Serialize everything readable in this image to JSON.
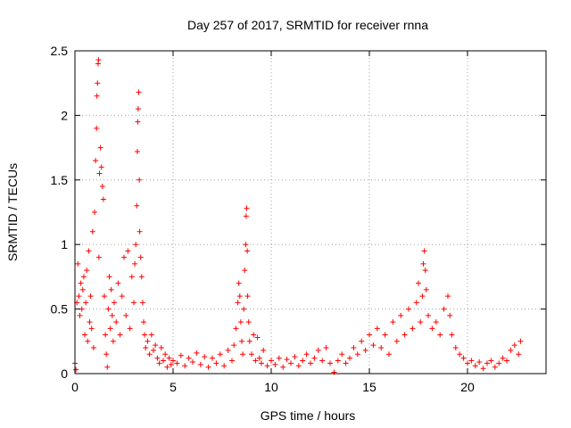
{
  "chart_data": {
    "type": "scatter",
    "title": "Day 257 of 2017, SRMTID for receiver rnna",
    "xlabel": "GPS time / hours",
    "ylabel": "SRMTID / TECUs",
    "xlim": [
      0,
      24
    ],
    "ylim": [
      0,
      2.5
    ],
    "xticks": [
      0,
      5,
      10,
      15,
      20
    ],
    "yticks": [
      0,
      0.5,
      1,
      1.5,
      2,
      2.5
    ],
    "ytick_labels": [
      "0",
      "0.5",
      "1",
      "1.5",
      "2",
      "2.5"
    ],
    "grid": true,
    "marker": "+",
    "color": "#ff0000",
    "series": [
      {
        "name": "SRMTID",
        "points": [
          [
            0.0,
            0.08
          ],
          [
            0.05,
            0.03
          ],
          [
            0.1,
            0.55
          ],
          [
            0.15,
            0.85
          ],
          [
            0.2,
            0.6
          ],
          [
            0.25,
            0.45
          ],
          [
            0.3,
            0.7
          ],
          [
            0.35,
            0.5
          ],
          [
            0.4,
            0.65
          ],
          [
            0.45,
            0.75
          ],
          [
            0.5,
            0.3
          ],
          [
            0.55,
            0.55
          ],
          [
            0.6,
            0.8
          ],
          [
            0.65,
            0.25
          ],
          [
            0.7,
            0.95
          ],
          [
            0.75,
            0.4
          ],
          [
            0.8,
            0.6
          ],
          [
            0.85,
            0.35
          ],
          [
            0.9,
            1.1
          ],
          [
            0.95,
            0.2
          ],
          [
            1.0,
            1.25
          ],
          [
            1.05,
            1.65
          ],
          [
            1.1,
            1.9
          ],
          [
            1.12,
            2.15
          ],
          [
            1.15,
            2.25
          ],
          [
            1.18,
            2.4
          ],
          [
            1.2,
            2.43
          ],
          [
            1.22,
            0.9
          ],
          [
            1.25,
            1.55
          ],
          [
            1.3,
            1.75
          ],
          [
            1.35,
            1.6
          ],
          [
            1.4,
            1.45
          ],
          [
            1.45,
            1.35
          ],
          [
            1.5,
            0.6
          ],
          [
            1.55,
            0.3
          ],
          [
            1.6,
            0.15
          ],
          [
            1.65,
            0.05
          ],
          [
            1.7,
            0.5
          ],
          [
            1.75,
            0.75
          ],
          [
            1.8,
            0.35
          ],
          [
            1.85,
            0.65
          ],
          [
            1.9,
            0.45
          ],
          [
            1.95,
            0.25
          ],
          [
            2.0,
            0.55
          ],
          [
            2.1,
            0.4
          ],
          [
            2.2,
            0.7
          ],
          [
            2.3,
            0.3
          ],
          [
            2.4,
            0.6
          ],
          [
            2.5,
            0.9
          ],
          [
            2.6,
            0.45
          ],
          [
            2.7,
            0.95
          ],
          [
            2.8,
            0.35
          ],
          [
            2.9,
            0.75
          ],
          [
            3.0,
            0.55
          ],
          [
            3.05,
            0.85
          ],
          [
            3.1,
            1.0
          ],
          [
            3.15,
            1.3
          ],
          [
            3.18,
            1.72
          ],
          [
            3.2,
            1.95
          ],
          [
            3.22,
            2.05
          ],
          [
            3.25,
            2.18
          ],
          [
            3.28,
            1.5
          ],
          [
            3.3,
            1.1
          ],
          [
            3.35,
            0.9
          ],
          [
            3.4,
            0.75
          ],
          [
            3.45,
            0.55
          ],
          [
            3.5,
            0.4
          ],
          [
            3.55,
            0.3
          ],
          [
            3.6,
            0.2
          ],
          [
            3.7,
            0.25
          ],
          [
            3.8,
            0.15
          ],
          [
            3.9,
            0.3
          ],
          [
            4.0,
            0.18
          ],
          [
            4.1,
            0.22
          ],
          [
            4.2,
            0.12
          ],
          [
            4.3,
            0.08
          ],
          [
            4.4,
            0.2
          ],
          [
            4.5,
            0.1
          ],
          [
            4.6,
            0.15
          ],
          [
            4.7,
            0.05
          ],
          [
            4.8,
            0.12
          ],
          [
            4.9,
            0.07
          ],
          [
            5.0,
            0.1
          ],
          [
            5.2,
            0.08
          ],
          [
            5.4,
            0.14
          ],
          [
            5.6,
            0.06
          ],
          [
            5.8,
            0.12
          ],
          [
            6.0,
            0.09
          ],
          [
            6.2,
            0.16
          ],
          [
            6.4,
            0.07
          ],
          [
            6.6,
            0.13
          ],
          [
            6.8,
            0.05
          ],
          [
            7.0,
            0.12
          ],
          [
            7.2,
            0.08
          ],
          [
            7.4,
            0.15
          ],
          [
            7.6,
            0.06
          ],
          [
            7.8,
            0.18
          ],
          [
            8.0,
            0.1
          ],
          [
            8.1,
            0.22
          ],
          [
            8.2,
            0.35
          ],
          [
            8.3,
            0.55
          ],
          [
            8.35,
            0.7
          ],
          [
            8.4,
            0.6
          ],
          [
            8.45,
            0.4
          ],
          [
            8.5,
            0.25
          ],
          [
            8.55,
            0.15
          ],
          [
            8.6,
            0.5
          ],
          [
            8.65,
            0.8
          ],
          [
            8.7,
            1.0
          ],
          [
            8.72,
            1.22
          ],
          [
            8.75,
            1.28
          ],
          [
            8.78,
            0.95
          ],
          [
            8.8,
            0.6
          ],
          [
            8.85,
            0.4
          ],
          [
            8.9,
            0.25
          ],
          [
            9.0,
            0.15
          ],
          [
            9.1,
            0.3
          ],
          [
            9.2,
            0.1
          ],
          [
            9.3,
            0.28
          ],
          [
            9.4,
            0.12
          ],
          [
            9.5,
            0.08
          ],
          [
            9.6,
            0.18
          ],
          [
            9.8,
            0.06
          ],
          [
            10.0,
            0.1
          ],
          [
            10.2,
            0.07
          ],
          [
            10.4,
            0.12
          ],
          [
            10.6,
            0.05
          ],
          [
            10.8,
            0.11
          ],
          [
            11.0,
            0.08
          ],
          [
            11.2,
            0.13
          ],
          [
            11.4,
            0.06
          ],
          [
            11.6,
            0.1
          ],
          [
            11.8,
            0.15
          ],
          [
            12.0,
            0.08
          ],
          [
            12.2,
            0.12
          ],
          [
            12.4,
            0.18
          ],
          [
            12.6,
            0.1
          ],
          [
            12.8,
            0.2
          ],
          [
            13.0,
            0.08
          ],
          [
            13.2,
            0.01
          ],
          [
            13.4,
            0.1
          ],
          [
            13.6,
            0.15
          ],
          [
            13.8,
            0.08
          ],
          [
            14.0,
            0.12
          ],
          [
            14.2,
            0.2
          ],
          [
            14.4,
            0.15
          ],
          [
            14.6,
            0.25
          ],
          [
            14.8,
            0.18
          ],
          [
            15.0,
            0.3
          ],
          [
            15.2,
            0.22
          ],
          [
            15.4,
            0.35
          ],
          [
            15.6,
            0.2
          ],
          [
            15.8,
            0.3
          ],
          [
            16.0,
            0.15
          ],
          [
            16.2,
            0.4
          ],
          [
            16.4,
            0.25
          ],
          [
            16.6,
            0.45
          ],
          [
            16.8,
            0.3
          ],
          [
            17.0,
            0.5
          ],
          [
            17.2,
            0.35
          ],
          [
            17.4,
            0.55
          ],
          [
            17.5,
            0.7
          ],
          [
            17.6,
            0.4
          ],
          [
            17.7,
            0.6
          ],
          [
            17.75,
            0.85
          ],
          [
            17.8,
            0.95
          ],
          [
            17.85,
            0.8
          ],
          [
            17.9,
            0.65
          ],
          [
            18.0,
            0.45
          ],
          [
            18.2,
            0.35
          ],
          [
            18.4,
            0.4
          ],
          [
            18.6,
            0.3
          ],
          [
            18.8,
            0.5
          ],
          [
            19.0,
            0.6
          ],
          [
            19.1,
            0.45
          ],
          [
            19.2,
            0.3
          ],
          [
            19.4,
            0.2
          ],
          [
            19.6,
            0.15
          ],
          [
            19.8,
            0.12
          ],
          [
            20.0,
            0.08
          ],
          [
            20.2,
            0.1
          ],
          [
            20.4,
            0.06
          ],
          [
            20.6,
            0.09
          ],
          [
            20.8,
            0.04
          ],
          [
            21.0,
            0.08
          ],
          [
            21.2,
            0.1
          ],
          [
            21.4,
            0.05
          ],
          [
            21.6,
            0.08
          ],
          [
            21.8,
            0.12
          ],
          [
            22.0,
            0.1
          ],
          [
            22.2,
            0.18
          ],
          [
            22.4,
            0.22
          ],
          [
            22.6,
            0.15
          ],
          [
            22.7,
            0.25
          ]
        ]
      }
    ]
  }
}
